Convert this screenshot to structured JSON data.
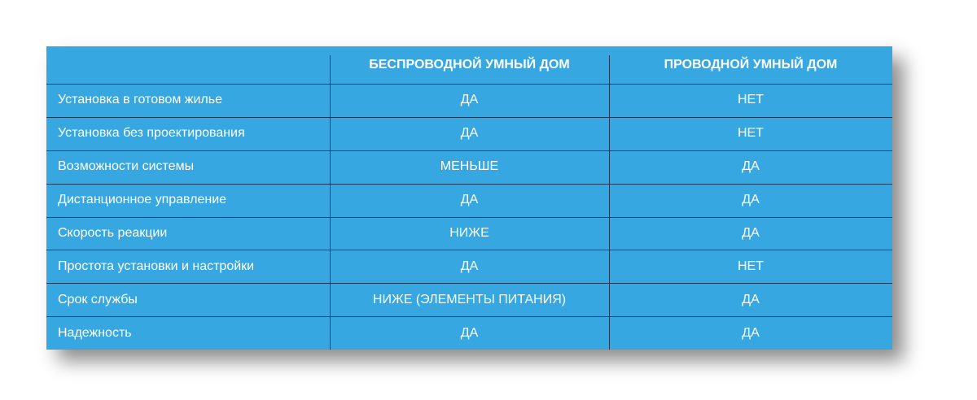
{
  "table": {
    "header": [
      "БЕСПРОВОДНОЙ УМНЫЙ ДОМ",
      "ПРОВОДНОЙ УМНЫЙ ДОМ"
    ],
    "rows": [
      [
        "Установка в готовом жилье",
        "ДА",
        "НЕТ"
      ],
      [
        "Установка без проектирования",
        "ДА",
        "НЕТ"
      ],
      [
        "Возможности системы",
        "МЕНЬШЕ",
        "ДА"
      ],
      [
        "Дистанционное управление",
        "ДА",
        "ДА"
      ],
      [
        "Скорость реакции",
        "НИЖЕ",
        "ДА"
      ],
      [
        "Простота установки и настройки",
        "ДА",
        "НЕТ"
      ],
      [
        "Срок службы",
        "НИЖЕ (ЭЛЕМЕНТЫ ПИТАНИЯ)",
        "ДА"
      ],
      [
        "Надежность",
        "ДА",
        "ДА"
      ]
    ]
  }
}
